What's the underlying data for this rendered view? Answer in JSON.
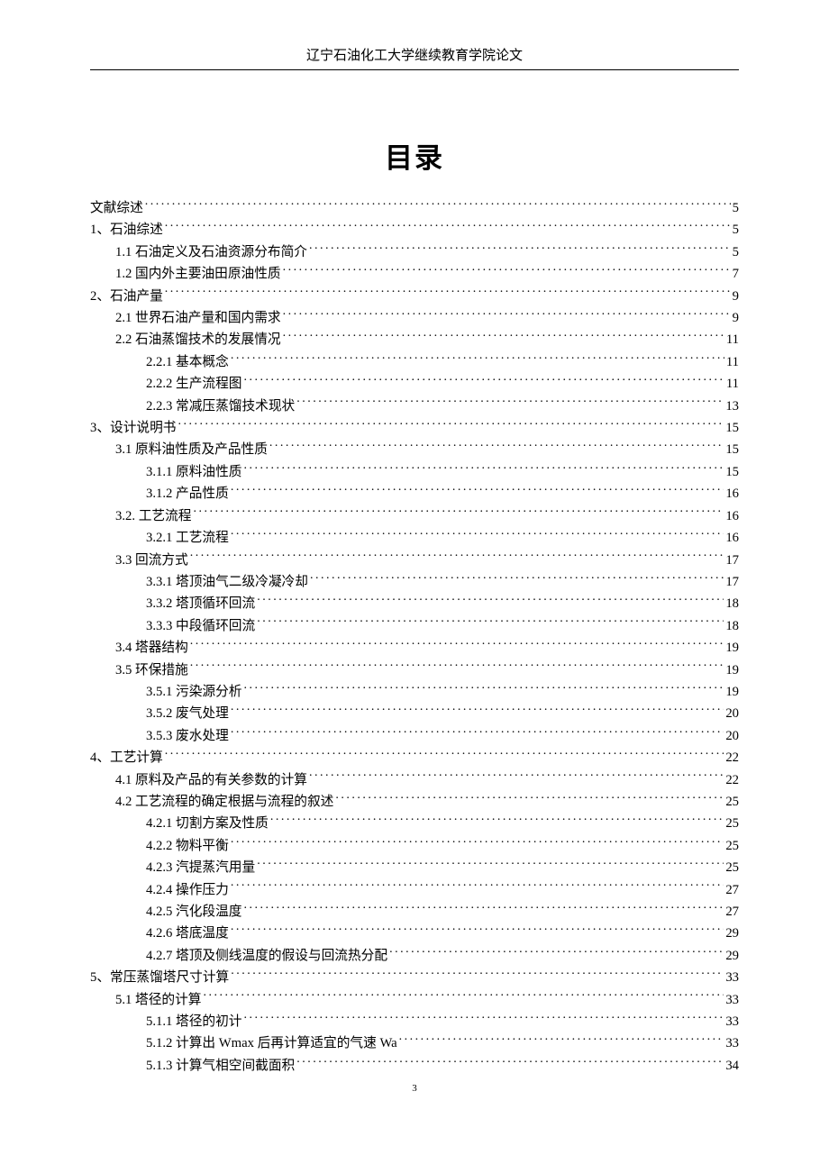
{
  "header": {
    "title": "辽宁石油化工大学继续教育学院论文"
  },
  "toc": {
    "title": "目录",
    "entries": [
      {
        "level": 0,
        "label": "文献综述",
        "page": "5"
      },
      {
        "level": 0,
        "label": "1、石油综述",
        "page": "5"
      },
      {
        "level": 1,
        "label": "1.1 石油定义及石油资源分布简介",
        "page": "5"
      },
      {
        "level": 1,
        "label": "1.2 国内外主要油田原油性质",
        "page": "7"
      },
      {
        "level": 0,
        "label": "2、石油产量",
        "page": "9"
      },
      {
        "level": 1,
        "label": "2.1 世界石油产量和国内需求",
        "page": "9"
      },
      {
        "level": 1,
        "label": "2.2 石油蒸馏技术的发展情况",
        "page": "11"
      },
      {
        "level": 2,
        "label": "2.2.1 基本概念",
        "page": "11"
      },
      {
        "level": 2,
        "label": "2.2.2 生产流程图",
        "page": "11"
      },
      {
        "level": 2,
        "label": "2.2.3 常减压蒸馏技术现状",
        "page": "13"
      },
      {
        "level": 0,
        "label": "3、设计说明书",
        "page": "15"
      },
      {
        "level": 1,
        "label": "3.1 原料油性质及产品性质",
        "page": "15"
      },
      {
        "level": 2,
        "label": "3.1.1 原料油性质",
        "page": "15"
      },
      {
        "level": 2,
        "label": "3.1.2 产品性质",
        "page": "16"
      },
      {
        "level": 1,
        "label": "3.2. 工艺流程",
        "page": "16"
      },
      {
        "level": 2,
        "label": "3.2.1 工艺流程",
        "page": "16"
      },
      {
        "level": 1,
        "label": "3.3 回流方式",
        "page": "17"
      },
      {
        "level": 2,
        "label": "3.3.1 塔顶油气二级冷凝冷却",
        "page": "17"
      },
      {
        "level": 2,
        "label": "3.3.2 塔顶循环回流",
        "page": "18"
      },
      {
        "level": 2,
        "label": "3.3.3 中段循环回流",
        "page": "18"
      },
      {
        "level": 1,
        "label": "3.4  塔器结构",
        "page": "19"
      },
      {
        "level": 1,
        "label": "3.5  环保措施",
        "page": "19"
      },
      {
        "level": 2,
        "label": "3.5.1 污染源分析",
        "page": "19"
      },
      {
        "level": 2,
        "label": "3.5.2 废气处理",
        "page": "20"
      },
      {
        "level": 2,
        "label": "3.5.3 废水处理",
        "page": "20"
      },
      {
        "level": 0,
        "label": "4、工艺计算",
        "page": "22"
      },
      {
        "level": 1,
        "label": "4.1  原料及产品的有关参数的计算",
        "page": "22"
      },
      {
        "level": 1,
        "label": "4.2 工艺流程的确定根据与流程的叙述",
        "page": "25"
      },
      {
        "level": 2,
        "label": "4.2.1 切割方案及性质",
        "page": "25"
      },
      {
        "level": 2,
        "label": "4.2.2 物料平衡",
        "page": "25"
      },
      {
        "level": 2,
        "label": "4.2.3 汽提蒸汽用量",
        "page": "25"
      },
      {
        "level": 2,
        "label": "4.2.4 操作压力",
        "page": "27"
      },
      {
        "level": 2,
        "label": "4.2.5 汽化段温度",
        "page": "27"
      },
      {
        "level": 2,
        "label": "4.2.6 塔底温度",
        "page": "29"
      },
      {
        "level": 2,
        "label": "4.2.7 塔顶及侧线温度的假设与回流热分配",
        "page": "29"
      },
      {
        "level": 0,
        "label": "5、常压蒸馏塔尺寸计算",
        "page": "33"
      },
      {
        "level": 1,
        "label": "5.1 塔径的计算",
        "page": "33"
      },
      {
        "level": 2,
        "label": "5.1.1 塔径的初计",
        "page": "33"
      },
      {
        "level": 2,
        "label": "5.1.2 计算出 Wmax 后再计算适宜的气速 Wa",
        "page": "33"
      },
      {
        "level": 2,
        "label": "5.1.3 计算气相空间截面积",
        "page": "34"
      }
    ]
  },
  "footer": {
    "pageNumber": "3"
  }
}
